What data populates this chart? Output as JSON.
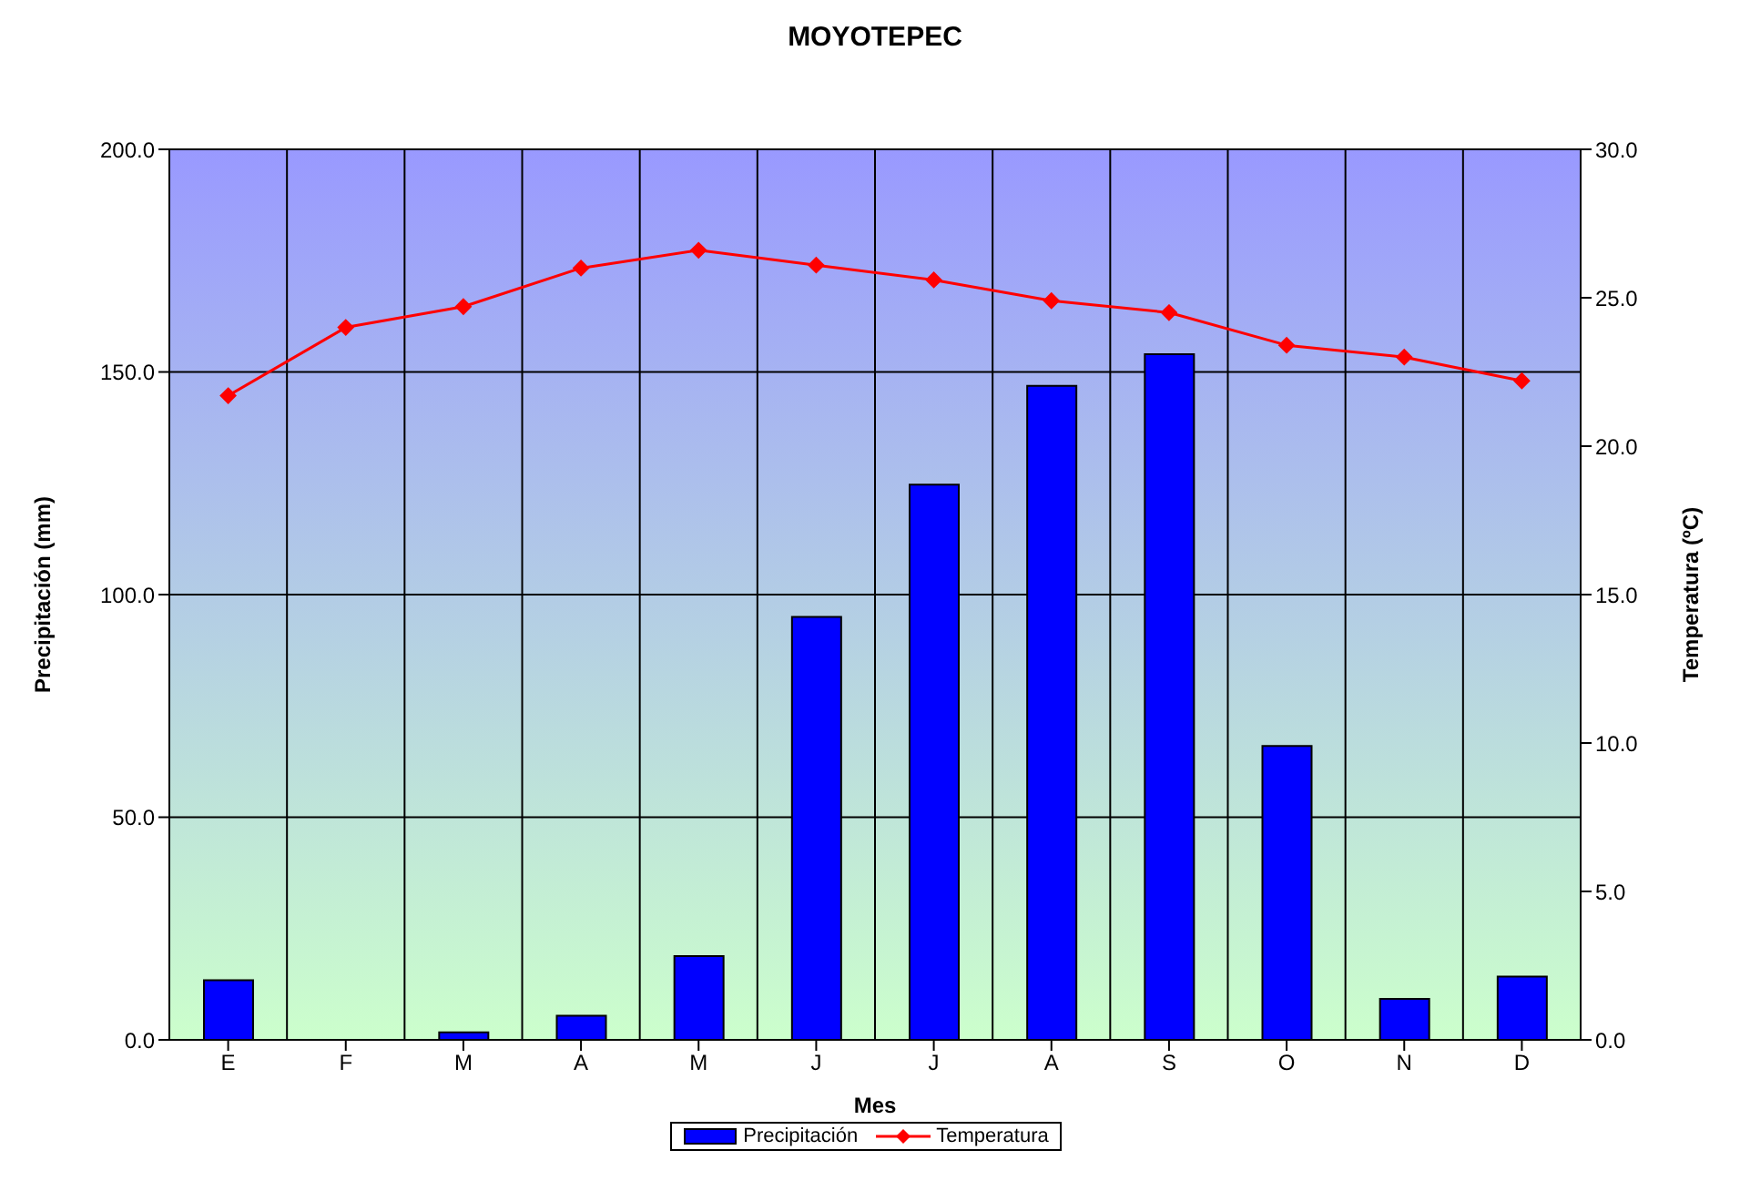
{
  "chart_data": {
    "type": "bar",
    "title": "MOYOTEPEC",
    "xlabel": "Mes",
    "ylabel": "Precipitación (mm)",
    "y2label": "Temperatura (ºC)",
    "categories": [
      "E",
      "F",
      "M",
      "A",
      "M",
      "J",
      "J",
      "A",
      "S",
      "O",
      "N",
      "D"
    ],
    "series": [
      {
        "name": "Precipitación",
        "color": "#0000ff",
        "values": [
          13.4,
          0,
          1.7,
          5.4,
          18.8,
          95,
          124.7,
          146.9,
          154,
          66,
          9.2,
          14.2
        ]
      },
      {
        "name": "Temperatura",
        "type": "line",
        "axis": "y2",
        "color": "#ff0000",
        "marker": "diamond",
        "values": [
          21.7,
          24.0,
          24.7,
          26.0,
          26.6,
          26.1,
          25.6,
          24.9,
          24.5,
          23.4,
          23.0,
          22.2
        ]
      }
    ],
    "ylim": [
      0,
      200
    ],
    "yticks": [
      {
        "value": 0,
        "label": "0.0"
      },
      {
        "value": 50,
        "label": "50.0"
      },
      {
        "value": 100,
        "label": "100.0"
      },
      {
        "value": 150,
        "label": "150.0"
      },
      {
        "value": 200,
        "label": "200.0"
      }
    ],
    "y2lim": [
      0,
      30
    ],
    "y2ticks": [
      {
        "value": 0,
        "label": "0.0"
      },
      {
        "value": 5,
        "label": "5.0"
      },
      {
        "value": 10,
        "label": "10.0"
      },
      {
        "value": 15,
        "label": "15.0"
      },
      {
        "value": 20,
        "label": "20.0"
      },
      {
        "value": 25,
        "label": "25.0"
      },
      {
        "value": 30,
        "label": "30.0"
      }
    ],
    "grid": true,
    "legend": "bottom"
  }
}
